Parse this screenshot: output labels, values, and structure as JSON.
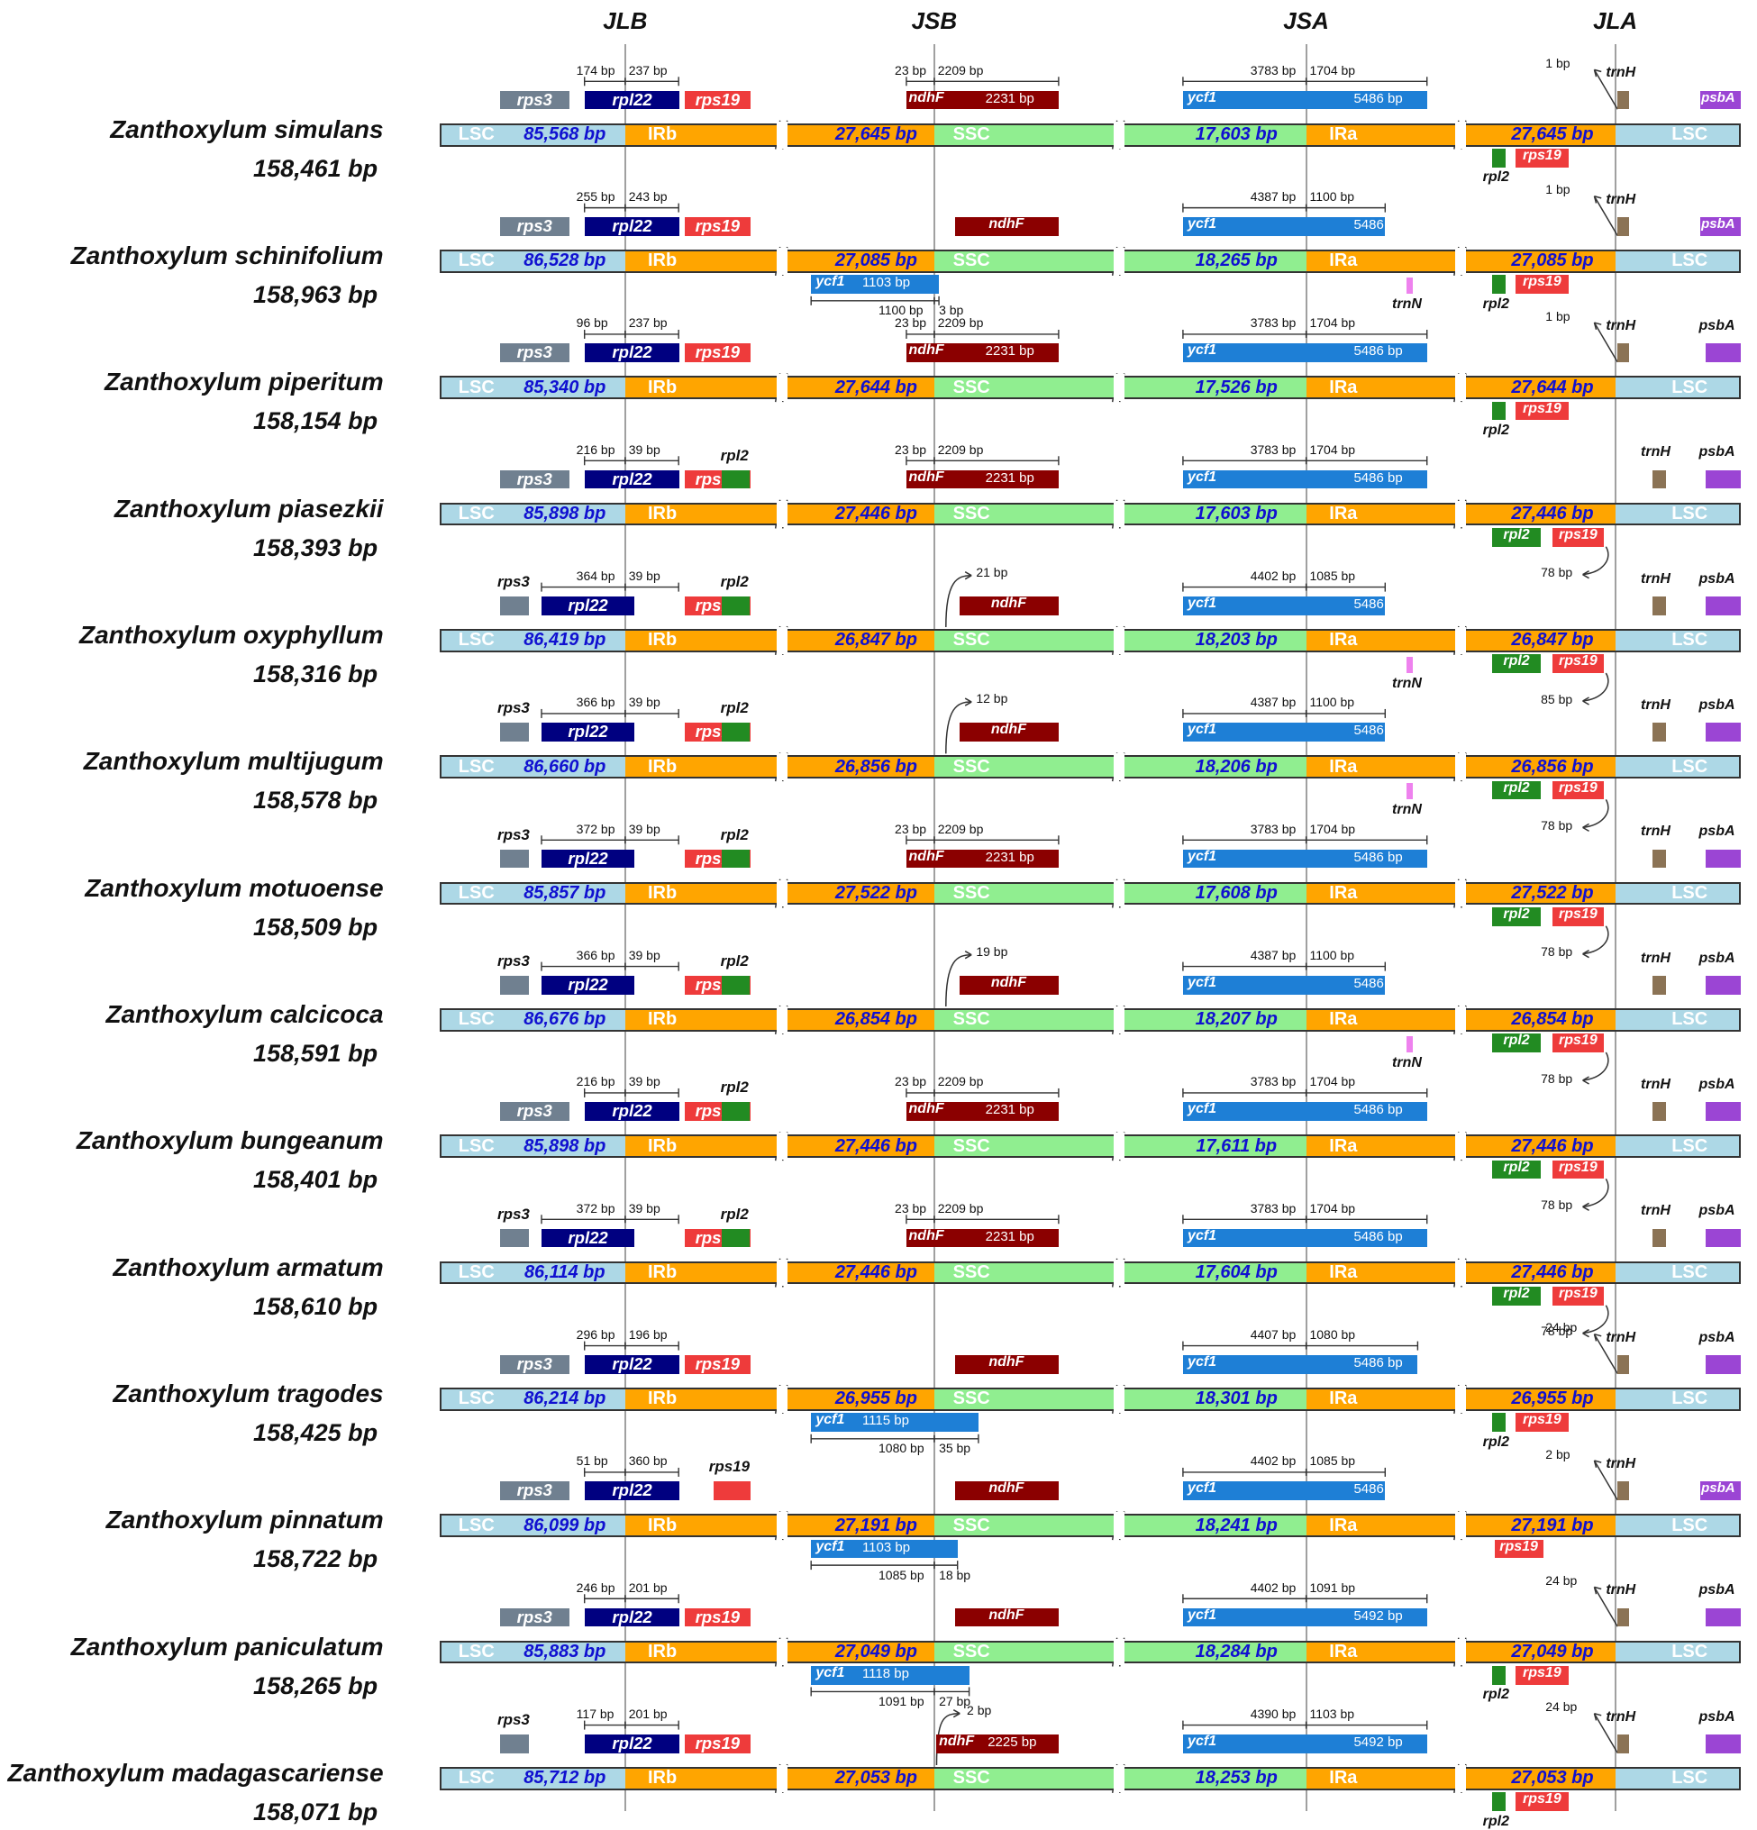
{
  "junctions": [
    "JLB",
    "JSB",
    "JSA",
    "JLA"
  ],
  "region_names": {
    "lsc": "LSC",
    "irb": "IRb",
    "ssc": "SSC",
    "ira": "IRa"
  },
  "colors": {
    "lsc": "#add8e6",
    "ir": "#ffa500",
    "ssc": "#90ee90",
    "rps3": "#708090",
    "rpl22": "#000080",
    "rps19": "#ee3b3b",
    "rpl2": "#228b22",
    "ndhF": "#8b0000",
    "ycf1": "#1e7fd6",
    "trnN": "#ee82ee",
    "trnH": "#8b7355",
    "psbA": "#9b45d4"
  },
  "species": [
    {
      "name": "Zanthoxylum simulans",
      "size": "158,461 bp",
      "lsc": "85,568 bp",
      "ir": "27,645 bp",
      "ssc": "17,603 bp",
      "jlb_left": "174 bp",
      "jlb_right": "237 bp",
      "rps3_in": true,
      "rpl22_wide": false,
      "rpl2_jlb": false,
      "rps19_small": false,
      "jsb_mode": "ndhF_span",
      "jsb_left": "23 bp",
      "jsb_right": "2209 bp",
      "ndhF_bp": "2231 bp",
      "ycf1_ssc": null,
      "ycf1_ssc_bp": null,
      "ycf1_split_left": null,
      "ycf1_split_right": null,
      "jsa_left": "3783 bp",
      "jsa_right": "1704 bp",
      "ycf1_bp": "5486 bp",
      "trnN": false,
      "jla_mode": "trnH_arrow",
      "jla_bp": "1 bp",
      "jla_rpl2_style": "below",
      "jla_78": null,
      "psbA_style": "in"
    },
    {
      "name": "Zanthoxylum schinifolium",
      "size": "158,963 bp",
      "lsc": "86,528 bp",
      "ir": "27,085 bp",
      "ssc": "18,265 bp",
      "jlb_left": "255 bp",
      "jlb_right": "243 bp",
      "rps3_in": true,
      "rpl22_wide": false,
      "rpl2_jlb": false,
      "rps19_small": false,
      "jsb_mode": "ndhF_ssc",
      "jsb_left": null,
      "jsb_right": null,
      "ndhF_bp": null,
      "ycf1_ssc": "ycf1",
      "ycf1_ssc_bp": "1103 bp",
      "ycf1_split_left": "1100 bp",
      "ycf1_split_right": "3 bp",
      "jsa_left": "4387 bp",
      "jsa_right": "1100 bp",
      "ycf1_bp": "5486 bp",
      "trnN": true,
      "jla_mode": "trnH_arrow",
      "jla_bp": "1 bp",
      "jla_rpl2_style": "below",
      "jla_78": null,
      "psbA_style": "in"
    },
    {
      "name": "Zanthoxylum piperitum",
      "size": "158,154 bp",
      "lsc": "85,340 bp",
      "ir": "27,644 bp",
      "ssc": "17,526 bp",
      "jlb_left": "96 bp",
      "jlb_right": "237 bp",
      "rps3_in": true,
      "rpl22_wide": false,
      "rpl2_jlb": false,
      "rps19_small": false,
      "jsb_mode": "ndhF_span",
      "jsb_left": "23 bp",
      "jsb_right": "2209 bp",
      "ndhF_bp": "2231 bp",
      "ycf1_ssc": null,
      "ycf1_ssc_bp": null,
      "ycf1_split_left": null,
      "ycf1_split_right": null,
      "jsa_left": "3783 bp",
      "jsa_right": "1704 bp",
      "ycf1_bp": "5486 bp",
      "trnN": false,
      "jla_mode": "trnH_arrow",
      "jla_bp": "1 bp",
      "jla_rpl2_style": "below",
      "jla_78": null,
      "psbA_style": "above"
    },
    {
      "name": "Zanthoxylum piasezkii",
      "size": "158,393 bp",
      "lsc": "85,898 bp",
      "ir": "27,446 bp",
      "ssc": "17,603 bp",
      "jlb_left": "216 bp",
      "jlb_right": "39 bp",
      "rps3_in": true,
      "rpl22_wide": false,
      "rpl2_jlb": true,
      "rps19_small": false,
      "jsb_mode": "ndhF_span",
      "jsb_left": "23 bp",
      "jsb_right": "2209 bp",
      "ndhF_bp": "2231 bp",
      "ycf1_ssc": null,
      "ycf1_ssc_bp": null,
      "ycf1_split_left": null,
      "ycf1_split_right": null,
      "jsa_left": "3783 bp",
      "jsa_right": "1704 bp",
      "ycf1_bp": "5486 bp",
      "trnN": false,
      "jla_mode": "trnH_plain",
      "jla_bp": null,
      "jla_rpl2_style": "inline",
      "jla_78": "78 bp",
      "psbA_style": "above"
    },
    {
      "name": "Zanthoxylum oxyphyllum",
      "size": "158,316 bp",
      "lsc": "86,419 bp",
      "ir": "26,847 bp",
      "ssc": "18,203 bp",
      "jlb_left": "364 bp",
      "jlb_right": "39 bp",
      "rps3_in": false,
      "rpl22_wide": true,
      "rpl2_jlb": true,
      "rps19_small": false,
      "jsb_mode": "ndhF_gap",
      "jsb_left": "21 bp",
      "jsb_right": null,
      "ndhF_bp": null,
      "ycf1_ssc": null,
      "ycf1_ssc_bp": null,
      "ycf1_split_left": null,
      "ycf1_split_right": null,
      "jsa_left": "4402 bp",
      "jsa_right": "1085 bp",
      "ycf1_bp": "5486 bp",
      "trnN": true,
      "jla_mode": "trnH_plain",
      "jla_bp": null,
      "jla_rpl2_style": "inline",
      "jla_78": "85 bp",
      "psbA_style": "above"
    },
    {
      "name": "Zanthoxylum multijugum",
      "size": "158,578 bp",
      "lsc": "86,660 bp",
      "ir": "26,856 bp",
      "ssc": "18,206 bp",
      "jlb_left": "366 bp",
      "jlb_right": "39 bp",
      "rps3_in": false,
      "rpl22_wide": true,
      "rpl2_jlb": true,
      "rps19_small": false,
      "jsb_mode": "ndhF_gap",
      "jsb_left": "12 bp",
      "jsb_right": null,
      "ndhF_bp": null,
      "ycf1_ssc": null,
      "ycf1_ssc_bp": null,
      "ycf1_split_left": null,
      "ycf1_split_right": null,
      "jsa_left": "4387 bp",
      "jsa_right": "1100 bp",
      "ycf1_bp": "5486 bp",
      "trnN": true,
      "jla_mode": "trnH_plain",
      "jla_bp": null,
      "jla_rpl2_style": "inline",
      "jla_78": "78 bp",
      "psbA_style": "above"
    },
    {
      "name": "Zanthoxylum motuoense",
      "size": "158,509 bp",
      "lsc": "85,857 bp",
      "ir": "27,522 bp",
      "ssc": "17,608 bp",
      "jlb_left": "372 bp",
      "jlb_right": "39 bp",
      "rps3_in": false,
      "rpl22_wide": true,
      "rpl2_jlb": true,
      "rps19_small": false,
      "jsb_mode": "ndhF_span",
      "jsb_left": "23 bp",
      "jsb_right": "2209 bp",
      "ndhF_bp": "2231 bp",
      "ycf1_ssc": null,
      "ycf1_ssc_bp": null,
      "ycf1_split_left": null,
      "ycf1_split_right": null,
      "jsa_left": "3783 bp",
      "jsa_right": "1704 bp",
      "ycf1_bp": "5486 bp",
      "trnN": false,
      "jla_mode": "trnH_plain",
      "jla_bp": null,
      "jla_rpl2_style": "inline",
      "jla_78": "78 bp",
      "psbA_style": "above"
    },
    {
      "name": "Zanthoxylum calcicoca",
      "size": "158,591 bp",
      "lsc": "86,676 bp",
      "ir": "26,854 bp",
      "ssc": "18,207 bp",
      "jlb_left": "366 bp",
      "jlb_right": "39 bp",
      "rps3_in": false,
      "rpl22_wide": true,
      "rpl2_jlb": true,
      "rps19_small": false,
      "jsb_mode": "ndhF_gap",
      "jsb_left": "19 bp",
      "jsb_right": null,
      "ndhF_bp": null,
      "ycf1_ssc": null,
      "ycf1_ssc_bp": null,
      "ycf1_split_left": null,
      "ycf1_split_right": null,
      "jsa_left": "4387 bp",
      "jsa_right": "1100 bp",
      "ycf1_bp": "5486 bp",
      "trnN": true,
      "jla_mode": "trnH_plain",
      "jla_bp": null,
      "jla_rpl2_style": "inline",
      "jla_78": "78 bp",
      "psbA_style": "above"
    },
    {
      "name": "Zanthoxylum bungeanum",
      "size": "158,401 bp",
      "lsc": "85,898 bp",
      "ir": "27,446 bp",
      "ssc": "17,611 bp",
      "jlb_left": "216 bp",
      "jlb_right": "39 bp",
      "rps3_in": true,
      "rpl22_wide": false,
      "rpl2_jlb": true,
      "rps19_small": false,
      "jsb_mode": "ndhF_span",
      "jsb_left": "23 bp",
      "jsb_right": "2209 bp",
      "ndhF_bp": "2231 bp",
      "ycf1_ssc": null,
      "ycf1_ssc_bp": null,
      "ycf1_split_left": null,
      "ycf1_split_right": null,
      "jsa_left": "3783 bp",
      "jsa_right": "1704 bp",
      "ycf1_bp": "5486 bp",
      "trnN": false,
      "jla_mode": "trnH_plain",
      "jla_bp": null,
      "jla_rpl2_style": "inline",
      "jla_78": "78 bp",
      "psbA_style": "above"
    },
    {
      "name": "Zanthoxylum armatum",
      "size": "158,610 bp",
      "lsc": "86,114 bp",
      "ir": "27,446 bp",
      "ssc": "17,604 bp",
      "jlb_left": "372 bp",
      "jlb_right": "39 bp",
      "rps3_in": false,
      "rpl22_wide": true,
      "rpl2_jlb": true,
      "rps19_small": false,
      "jsb_mode": "ndhF_span",
      "jsb_left": "23 bp",
      "jsb_right": "2209 bp",
      "ndhF_bp": "2231 bp",
      "ycf1_ssc": null,
      "ycf1_ssc_bp": null,
      "ycf1_split_left": null,
      "ycf1_split_right": null,
      "jsa_left": "3783 bp",
      "jsa_right": "1704 bp",
      "ycf1_bp": "5486 bp",
      "trnN": false,
      "jla_mode": "trnH_plain",
      "jla_bp": null,
      "jla_rpl2_style": "inline",
      "jla_78": "78 bp",
      "psbA_style": "above"
    },
    {
      "name": "Zanthoxylum tragodes",
      "size": "158,425 bp",
      "lsc": "86,214 bp",
      "ir": "26,955 bp",
      "ssc": "18,301 bp",
      "jlb_left": "296 bp",
      "jlb_right": "196 bp",
      "rps3_in": true,
      "rpl22_wide": false,
      "rpl2_jlb": false,
      "rps19_small": false,
      "jsb_mode": "ndhF_ssc",
      "jsb_left": null,
      "jsb_right": null,
      "ndhF_bp": null,
      "ycf1_ssc": "ycf1",
      "ycf1_ssc_bp": "1115 bp",
      "ycf1_split_left": "1080 bp",
      "ycf1_split_right": "35 bp",
      "jsa_left": "4407 bp",
      "jsa_right": "1080 bp",
      "ycf1_bp": "5486 bp",
      "trnN": false,
      "jla_mode": "trnH_arrow",
      "jla_bp": "24 bp",
      "jla_rpl2_style": "below",
      "jla_78": null,
      "psbA_style": "above"
    },
    {
      "name": "Zanthoxylum pinnatum",
      "size": "158,722 bp",
      "lsc": "86,099 bp",
      "ir": "27,191 bp",
      "ssc": "18,241 bp",
      "jlb_left": "51 bp",
      "jlb_right": "360 bp",
      "rps3_in": true,
      "rpl22_wide": false,
      "rpl2_jlb": false,
      "rps19_small": true,
      "jsb_mode": "ndhF_ssc",
      "jsb_left": null,
      "jsb_right": null,
      "ndhF_bp": null,
      "ycf1_ssc": "ycf1",
      "ycf1_ssc_bp": "1103 bp",
      "ycf1_split_left": "1085 bp",
      "ycf1_split_right": "18 bp",
      "jsa_left": "4402 bp",
      "jsa_right": "1085 bp",
      "ycf1_bp": "5486 bp",
      "trnN": false,
      "jla_mode": "trnH_arrow",
      "jla_bp": "2 bp",
      "jla_rpl2_style": "none",
      "jla_78": null,
      "psbA_style": "in"
    },
    {
      "name": "Zanthoxylum paniculatum",
      "size": "158,265 bp",
      "lsc": "85,883 bp",
      "ir": "27,049 bp",
      "ssc": "18,284 bp",
      "jlb_left": "246 bp",
      "jlb_right": "201 bp",
      "rps3_in": true,
      "rpl22_wide": false,
      "rpl2_jlb": false,
      "rps19_small": false,
      "jsb_mode": "ndhF_ssc",
      "jsb_left": null,
      "jsb_right": null,
      "ndhF_bp": null,
      "ycf1_ssc": "ycf1",
      "ycf1_ssc_bp": "1118 bp",
      "ycf1_split_left": "1091 bp",
      "ycf1_split_right": "27 bp",
      "jsa_left": "4402 bp",
      "jsa_right": "1091 bp",
      "ycf1_bp": "5492 bp",
      "trnN": false,
      "jla_mode": "trnH_arrow",
      "jla_bp": "24 bp",
      "jla_rpl2_style": "below",
      "jla_78": null,
      "psbA_style": "above"
    },
    {
      "name": "Zanthoxylum madagascariense",
      "size": "158,071 bp",
      "lsc": "85,712 bp",
      "ir": "27,053 bp",
      "ssc": "18,253 bp",
      "jlb_left": "117 bp",
      "jlb_right": "201 bp",
      "rps3_in": false,
      "rpl22_wide": false,
      "rpl2_jlb": false,
      "rps19_small": false,
      "jsb_mode": "ndhF_gap2",
      "jsb_left": "2 bp",
      "jsb_right": null,
      "ndhF_bp": "2225 bp",
      "ycf1_ssc": null,
      "ycf1_ssc_bp": null,
      "ycf1_split_left": null,
      "ycf1_split_right": null,
      "jsa_left": "4390 bp",
      "jsa_right": "1103 bp",
      "ycf1_bp": "5492 bp",
      "trnN": false,
      "jla_mode": "trnH_arrow",
      "jla_bp": "24 bp",
      "jla_rpl2_style": "below",
      "jla_78": null,
      "psbA_style": "above"
    }
  ],
  "gene_names": {
    "rps3": "rps3",
    "rpl22": "rpl22",
    "rps19": "rps19",
    "rpl2": "rpl2",
    "ndhF": "ndhF",
    "ycf1": "ycf1",
    "trnN": "trnN",
    "trnH": "trnH",
    "psbA": "psbA"
  }
}
